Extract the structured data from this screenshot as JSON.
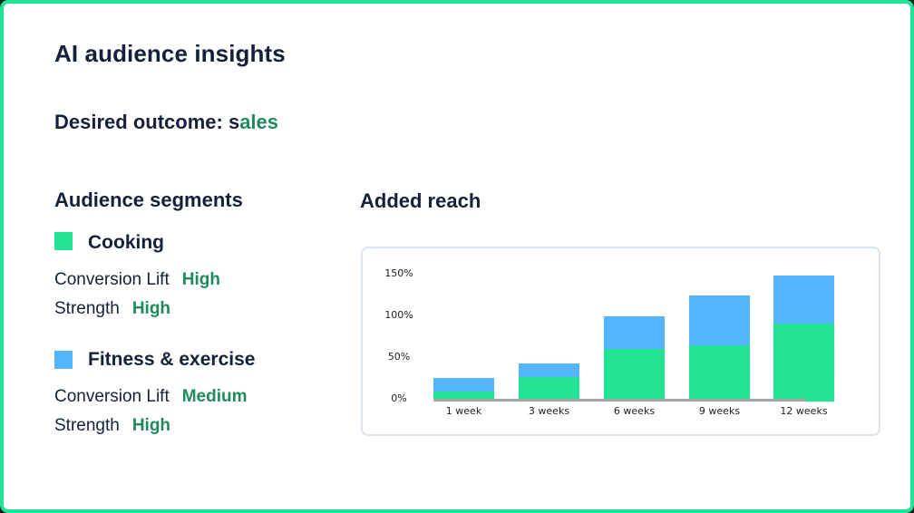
{
  "page": {
    "title": "AI audience insights",
    "outcome": {
      "label": "Desired outcome: ",
      "value_prefix": "s",
      "value_rest": "ales"
    }
  },
  "segments": {
    "heading": "Audience segments",
    "items": [
      {
        "name": "Cooking",
        "color": "#22e394",
        "metrics": [
          {
            "label": "Conversion Lift",
            "value": "High"
          },
          {
            "label": "Strength",
            "value": "High"
          }
        ]
      },
      {
        "name": "Fitness & exercise",
        "color": "#54b5ff",
        "metrics": [
          {
            "label": "Conversion Lift",
            "value": "Medium"
          },
          {
            "label": "Strength",
            "value": "High"
          }
        ]
      }
    ]
  },
  "reach": {
    "heading": "Added reach"
  },
  "colors": {
    "frame": "#22e394",
    "accent_text": "#1f8a5c",
    "cooking": "#22e394",
    "fitness": "#54b5ff"
  },
  "chart_data": {
    "type": "bar",
    "stacked": true,
    "title": "Added reach",
    "xlabel": "",
    "ylabel": "",
    "categories": [
      "1 week",
      "3 weeks",
      "6 weeks",
      "9 weeks",
      "12 weeks"
    ],
    "series": [
      {
        "name": "Cooking",
        "color": "#22e394",
        "values": [
          10,
          27,
          61,
          65,
          91
        ]
      },
      {
        "name": "Fitness & exercise",
        "color": "#54b5ff",
        "values": [
          16,
          16,
          39,
          60,
          58
        ]
      }
    ],
    "totals": [
      26,
      43,
      100,
      125,
      149
    ],
    "yticks": [
      "0%",
      "50%",
      "100%",
      "150%"
    ],
    "ylim": [
      0,
      150
    ],
    "grid": false,
    "legend": "none (segments listed at left)"
  }
}
